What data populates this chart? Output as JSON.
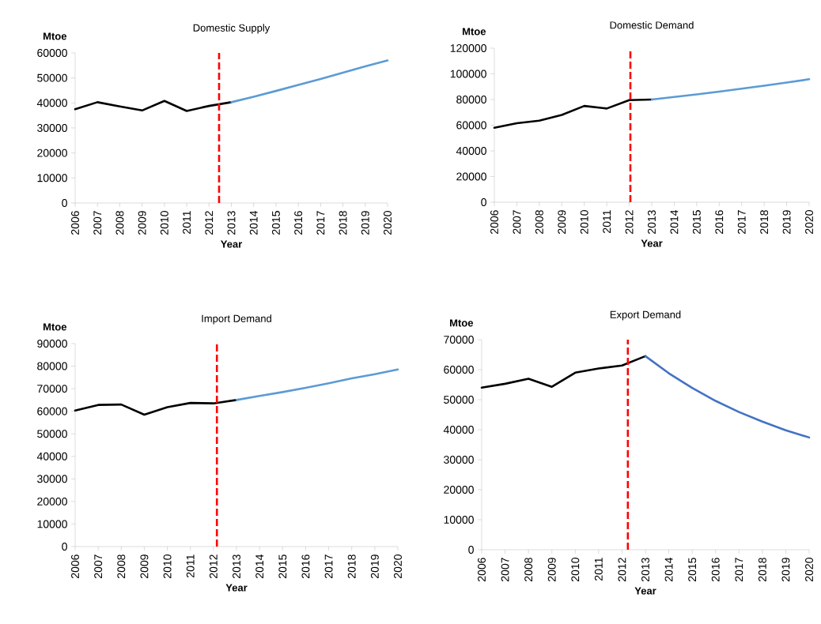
{
  "chart_data": [
    {
      "type": "line",
      "title": "Domestic Supply",
      "xlabel": "Year",
      "ylabel": "Mtoe",
      "xlim": [
        2006,
        2020
      ],
      "xticks": [
        2006,
        2007,
        2008,
        2009,
        2010,
        2011,
        2012,
        2013,
        2014,
        2015,
        2016,
        2017,
        2018,
        2019,
        2020
      ],
      "ylim": [
        0,
        60000
      ],
      "yticks": [
        0,
        10000,
        20000,
        30000,
        40000,
        50000,
        60000
      ],
      "series": [
        {
          "color": "#000000",
          "x": [
            2006,
            2007,
            2008,
            2009,
            2010,
            2011,
            2012,
            2013
          ],
          "values": [
            37500,
            40300,
            38600,
            37000,
            40800,
            36800,
            38800,
            40300
          ]
        },
        {
          "color": "#5b9bd5",
          "x": [
            2013,
            2014,
            2015,
            2016,
            2017,
            2018,
            2019,
            2020
          ],
          "values": [
            40300,
            42500,
            44800,
            47200,
            49600,
            52100,
            54600,
            57000
          ]
        }
      ],
      "ref_lines": [
        {
          "axis": "x",
          "value": 2012.45,
          "color": "#ff0000",
          "line_style": "dashed"
        }
      ]
    },
    {
      "type": "line",
      "title": "Domestic Demand",
      "xlabel": "Year",
      "ylabel": "Mtoe",
      "xlim": [
        2006,
        2020
      ],
      "xticks": [
        2006,
        2007,
        2008,
        2009,
        2010,
        2011,
        2012,
        2013,
        2014,
        2015,
        2016,
        2017,
        2018,
        2019,
        2020
      ],
      "ylim": [
        0,
        120000
      ],
      "yticks": [
        0,
        20000,
        40000,
        60000,
        80000,
        100000,
        120000
      ],
      "series": [
        {
          "color": "#000000",
          "x": [
            2006,
            2007,
            2008,
            2009,
            2010,
            2011,
            2012,
            2013
          ],
          "values": [
            58000,
            61500,
            63500,
            68000,
            75000,
            73000,
            79500,
            80000
          ]
        },
        {
          "color": "#5b9bd5",
          "x": [
            2013,
            2014,
            2015,
            2016,
            2017,
            2018,
            2019,
            2020
          ],
          "values": [
            80000,
            82000,
            84000,
            86200,
            88500,
            90800,
            93200,
            95800
          ]
        }
      ],
      "ref_lines": [
        {
          "axis": "x",
          "value": 2012.05,
          "color": "#ff0000",
          "line_style": "dashed"
        }
      ]
    },
    {
      "type": "line",
      "title": "Import Demand",
      "xlabel": "Year",
      "ylabel": "Mtoe",
      "xlim": [
        2006,
        2020
      ],
      "xticks": [
        2006,
        2007,
        2008,
        2009,
        2010,
        2011,
        2012,
        2013,
        2014,
        2015,
        2016,
        2017,
        2018,
        2019,
        2020
      ],
      "ylim": [
        0,
        90000
      ],
      "yticks": [
        0,
        10000,
        20000,
        30000,
        40000,
        50000,
        60000,
        70000,
        80000,
        90000
      ],
      "series": [
        {
          "color": "#000000",
          "x": [
            2006,
            2007,
            2008,
            2009,
            2010,
            2011,
            2012,
            2013
          ],
          "values": [
            60300,
            62800,
            63000,
            58500,
            61800,
            63700,
            63500,
            65000
          ]
        },
        {
          "color": "#5b9bd5",
          "x": [
            2013,
            2014,
            2015,
            2016,
            2017,
            2018,
            2019,
            2020
          ],
          "values": [
            65000,
            66800,
            68500,
            70400,
            72400,
            74600,
            76400,
            78500
          ]
        }
      ],
      "ref_lines": [
        {
          "axis": "x",
          "value": 2012.15,
          "color": "#ff0000",
          "line_style": "dashed"
        }
      ]
    },
    {
      "type": "line",
      "title": "Export Demand",
      "xlabel": "Year",
      "ylabel": "Mtoe",
      "xlim": [
        2006,
        2020
      ],
      "xticks": [
        2006,
        2007,
        2008,
        2009,
        2010,
        2011,
        2012,
        2013,
        2014,
        2015,
        2016,
        2017,
        2018,
        2019,
        2020
      ],
      "ylim": [
        0,
        70000
      ],
      "yticks": [
        0,
        10000,
        20000,
        30000,
        40000,
        50000,
        60000,
        70000
      ],
      "series": [
        {
          "color": "#000000",
          "x": [
            2006,
            2007,
            2008,
            2009,
            2010,
            2011,
            2012,
            2013
          ],
          "values": [
            54000,
            55300,
            57000,
            54300,
            59000,
            60400,
            61400,
            64500
          ]
        },
        {
          "color": "#4472c4",
          "x": [
            2013,
            2014,
            2015,
            2016,
            2017,
            2018,
            2019,
            2020
          ],
          "values": [
            64500,
            58800,
            53900,
            49600,
            45900,
            42700,
            39800,
            37400
          ]
        }
      ],
      "ref_lines": [
        {
          "axis": "x",
          "value": 2012.25,
          "color": "#ff0000",
          "line_style": "dashed"
        }
      ]
    }
  ]
}
